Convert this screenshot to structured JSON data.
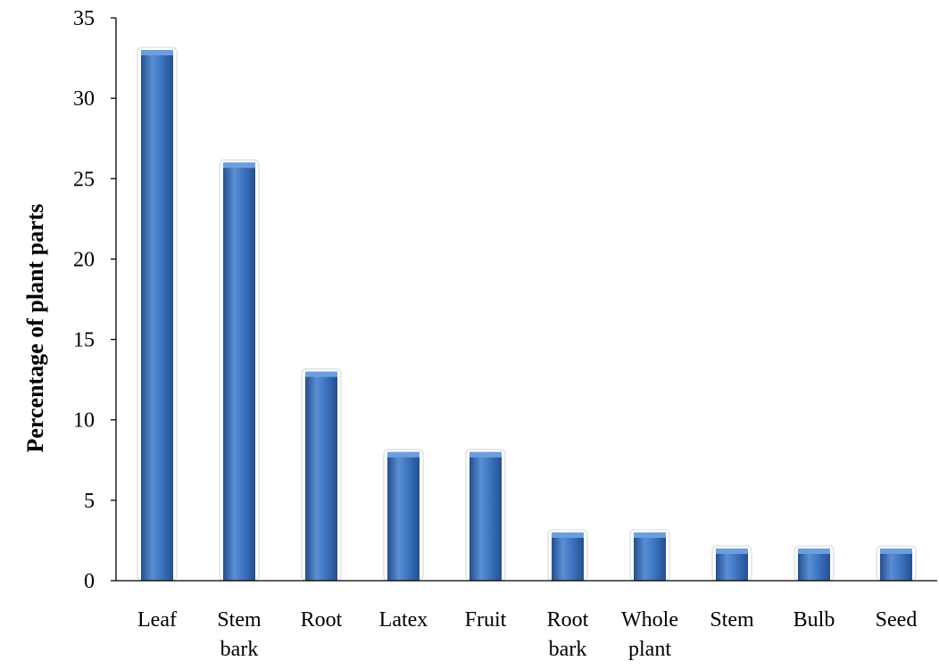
{
  "chart_data": {
    "type": "bar",
    "title": "",
    "xlabel": "",
    "ylabel": "Percentage of plant parts",
    "ylim": [
      0,
      35
    ],
    "yticks": [
      0,
      5,
      10,
      15,
      20,
      25,
      30,
      35
    ],
    "grid": false,
    "legend": "none",
    "categories": [
      [
        "Leaf"
      ],
      [
        "Stem",
        "bark"
      ],
      [
        "Root"
      ],
      [
        "Latex"
      ],
      [
        "Fruit"
      ],
      [
        "Root",
        "bark"
      ],
      [
        "Whole",
        "plant"
      ],
      [
        "Stem"
      ],
      [
        "Bulb"
      ],
      [
        "Seed"
      ]
    ],
    "values": [
      33,
      26,
      13,
      8,
      8,
      3,
      3,
      2,
      2,
      2
    ],
    "colors": {
      "bar": "#3a72c0",
      "bar_light": "#6f9edb",
      "bar_dark": "#224f8f"
    }
  }
}
